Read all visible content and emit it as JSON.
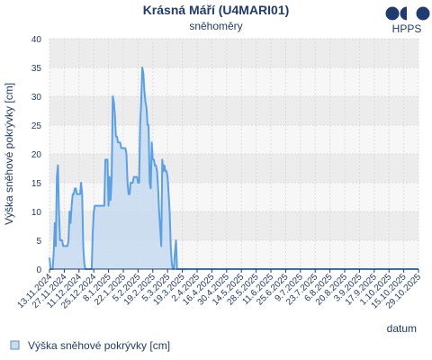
{
  "logo": {
    "text": "HPPS"
  },
  "chart_data": {
    "type": "area",
    "title": "Krásná Máří (U4MARI01)",
    "subtitle": "sněhoměry",
    "xlabel": "datum",
    "ylabel": "Výška sněhové pokrývky [cm]",
    "ylim": [
      0,
      40
    ],
    "yticks": [
      0,
      5,
      10,
      15,
      20,
      25,
      30,
      35,
      40
    ],
    "grid": true,
    "legend_position": "bottom-left",
    "x_tick_labels": [
      "13.11.2024",
      "27.11.2024",
      "11.12.2024",
      "25.12.2024",
      "8.1.2025",
      "22.1.2025",
      "5.2.2025",
      "19.2.2025",
      "5.3.2025",
      "19.3.2025",
      "2.4.2025",
      "16.4.2025",
      "30.4.2025",
      "14.5.2025",
      "28.5.2025",
      "11.6.2025",
      "25.6.2025",
      "9.7.2025",
      "23.7.2025",
      "6.8.2025",
      "20.8.2025",
      "3.9.2025",
      "17.9.2025",
      "1.10.2025",
      "15.10.2025",
      "29.10.2025"
    ],
    "series": [
      {
        "name": "Výška sněhové pokrývky [cm]",
        "color": "#5aa0e6",
        "fill": "#c9dcf0",
        "points": [
          [
            "2024-11-13",
            2
          ],
          [
            "2024-11-14",
            0
          ],
          [
            "2024-11-15",
            0
          ],
          [
            "2024-11-16",
            0
          ],
          [
            "2024-11-17",
            3
          ],
          [
            "2024-11-18",
            8
          ],
          [
            "2024-11-19",
            4
          ],
          [
            "2024-11-20",
            16
          ],
          [
            "2024-11-21",
            18
          ],
          [
            "2024-11-22",
            10
          ],
          [
            "2024-11-23",
            5
          ],
          [
            "2024-11-24",
            5
          ],
          [
            "2024-11-25",
            5
          ],
          [
            "2024-11-26",
            4
          ],
          [
            "2024-11-27",
            4
          ],
          [
            "2024-11-28",
            4
          ],
          [
            "2024-11-29",
            4
          ],
          [
            "2024-11-30",
            4
          ],
          [
            "2024-12-01",
            5
          ],
          [
            "2024-12-02",
            10
          ],
          [
            "2024-12-03",
            8
          ],
          [
            "2024-12-04",
            11
          ],
          [
            "2024-12-05",
            13
          ],
          [
            "2024-12-06",
            13
          ],
          [
            "2024-12-07",
            14
          ],
          [
            "2024-12-08",
            14
          ],
          [
            "2024-12-09",
            13
          ],
          [
            "2024-12-10",
            13
          ],
          [
            "2024-12-11",
            13
          ],
          [
            "2024-12-12",
            13
          ],
          [
            "2024-12-13",
            15
          ],
          [
            "2024-12-14",
            13
          ],
          [
            "2024-12-15",
            4
          ],
          [
            "2024-12-16",
            1
          ],
          [
            "2024-12-17",
            0
          ],
          [
            "2024-12-18",
            0
          ],
          [
            "2024-12-19",
            0
          ],
          [
            "2024-12-20",
            0
          ],
          [
            "2024-12-21",
            0
          ],
          [
            "2024-12-22",
            0
          ],
          [
            "2024-12-23",
            0
          ],
          [
            "2024-12-24",
            6
          ],
          [
            "2024-12-25",
            10
          ],
          [
            "2024-12-26",
            11
          ],
          [
            "2024-12-27",
            11
          ],
          [
            "2024-12-28",
            11
          ],
          [
            "2024-12-29",
            11
          ],
          [
            "2024-12-30",
            11
          ],
          [
            "2024-12-31",
            11
          ],
          [
            "2025-01-01",
            11
          ],
          [
            "2025-01-02",
            11
          ],
          [
            "2025-01-03",
            11
          ],
          [
            "2025-01-04",
            11
          ],
          [
            "2025-01-05",
            19
          ],
          [
            "2025-01-06",
            19
          ],
          [
            "2025-01-07",
            19
          ],
          [
            "2025-01-08",
            11
          ],
          [
            "2025-01-09",
            16
          ],
          [
            "2025-01-10",
            12
          ],
          [
            "2025-01-11",
            16
          ],
          [
            "2025-01-12",
            30
          ],
          [
            "2025-01-13",
            29
          ],
          [
            "2025-01-14",
            27
          ],
          [
            "2025-01-15",
            23
          ],
          [
            "2025-01-16",
            23
          ],
          [
            "2025-01-17",
            22
          ],
          [
            "2025-01-18",
            22
          ],
          [
            "2025-01-19",
            22
          ],
          [
            "2025-01-20",
            21
          ],
          [
            "2025-01-21",
            21
          ],
          [
            "2025-01-22",
            21
          ],
          [
            "2025-01-23",
            21
          ],
          [
            "2025-01-24",
            21
          ],
          [
            "2025-01-25",
            20
          ],
          [
            "2025-01-26",
            15
          ],
          [
            "2025-01-27",
            13
          ],
          [
            "2025-01-28",
            13
          ],
          [
            "2025-01-29",
            15
          ],
          [
            "2025-01-30",
            15
          ],
          [
            "2025-01-31",
            15
          ],
          [
            "2025-02-01",
            16
          ],
          [
            "2025-02-02",
            16
          ],
          [
            "2025-02-03",
            16
          ],
          [
            "2025-02-04",
            16
          ],
          [
            "2025-02-05",
            15
          ],
          [
            "2025-02-06",
            15
          ],
          [
            "2025-02-07",
            25
          ],
          [
            "2025-02-08",
            29
          ],
          [
            "2025-02-09",
            35
          ],
          [
            "2025-02-10",
            34
          ],
          [
            "2025-02-11",
            31
          ],
          [
            "2025-02-12",
            29
          ],
          [
            "2025-02-13",
            28
          ],
          [
            "2025-02-14",
            25
          ],
          [
            "2025-02-15",
            25
          ],
          [
            "2025-02-16",
            15
          ],
          [
            "2025-02-17",
            14
          ],
          [
            "2025-02-18",
            22
          ],
          [
            "2025-02-19",
            19
          ],
          [
            "2025-02-20",
            19
          ],
          [
            "2025-02-21",
            18
          ],
          [
            "2025-02-22",
            18
          ],
          [
            "2025-02-23",
            17
          ],
          [
            "2025-02-24",
            14
          ],
          [
            "2025-02-25",
            10
          ],
          [
            "2025-02-26",
            7
          ],
          [
            "2025-02-27",
            4
          ],
          [
            "2025-02-28",
            19
          ],
          [
            "2025-03-01",
            17
          ],
          [
            "2025-03-02",
            18
          ],
          [
            "2025-03-03",
            17
          ],
          [
            "2025-03-04",
            17
          ],
          [
            "2025-03-05",
            16
          ],
          [
            "2025-03-06",
            13
          ],
          [
            "2025-03-07",
            10
          ],
          [
            "2025-03-08",
            4
          ],
          [
            "2025-03-09",
            1
          ],
          [
            "2025-03-10",
            0
          ],
          [
            "2025-03-11",
            0
          ],
          [
            "2025-03-12",
            3
          ],
          [
            "2025-03-13",
            5
          ],
          [
            "2025-03-14",
            0
          ],
          [
            "2025-03-15",
            0
          ],
          [
            "2025-10-29",
            0
          ]
        ]
      }
    ]
  }
}
